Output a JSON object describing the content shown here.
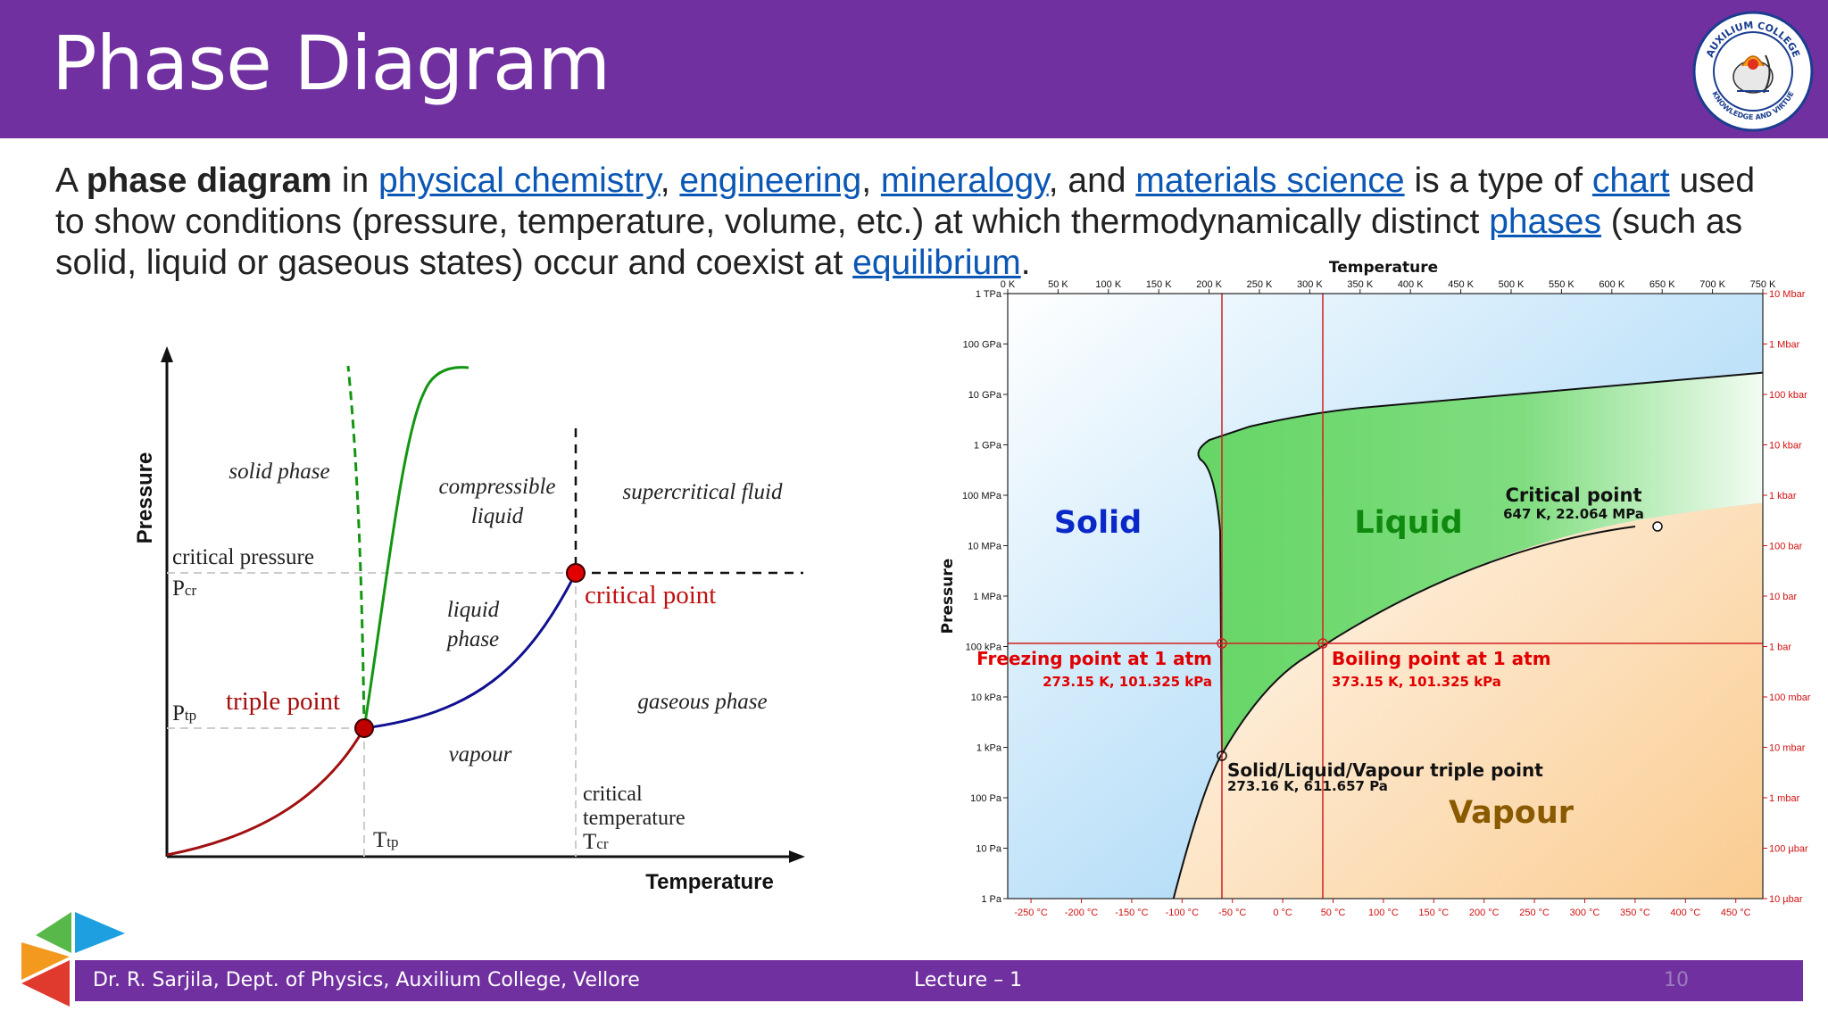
{
  "header": {
    "title": "Phase Diagram",
    "logo": {
      "text_top": "AUXILIUM COLLEGE",
      "text_bottom": "KNOWLEDGE AND VIRTUE",
      "icon": "college-seal"
    }
  },
  "intro": {
    "t1": "A ",
    "bold": "phase diagram",
    "t2": " in ",
    "link1": "physical chemistry",
    "t3": ", ",
    "link2": "engineering",
    "t4": ", ",
    "link3": "mineralogy",
    "t5": ", and ",
    "link4": "materials science",
    "t6": " is a type of ",
    "link5": "chart",
    "t7": " used to show conditions (pressure, temperature, volume, etc.) at which thermodynamically distinct ",
    "link6": "phases",
    "t8": " (such as solid, liquid or gaseous states) occur and coexist at ",
    "link7": "equilibrium",
    "t9": "."
  },
  "left_diagram": {
    "y_axis": "Pressure",
    "x_axis": "Temperature",
    "regions": {
      "solid": "solid phase",
      "compressible_1": "compressible",
      "compressible_2": "liquid",
      "supercritical": "supercritical fluid",
      "liquid_1": "liquid",
      "liquid_2": "phase",
      "gaseous": "gaseous phase",
      "vapour": "vapour"
    },
    "labels": {
      "critical_pressure": "critical pressure",
      "p_cr": "P",
      "p_cr_sub": "cr",
      "p_tp": "P",
      "p_tp_sub": "tp",
      "t_tp": "T",
      "t_tp_sub": "tp",
      "triple_point": "triple point",
      "critical_point": "critical point",
      "critical_temp_1": "critical",
      "critical_temp_2": "temperature",
      "t_cr": "T",
      "t_cr_sub": "cr"
    },
    "colors": {
      "sublimation": "#a01010",
      "vapor": "#101090",
      "melting": "#129612",
      "point": "#c00000"
    }
  },
  "chart_data": {
    "type": "phase-diagram",
    "title": "Temperature",
    "ylabel": "Pressure",
    "x_top_ticks": [
      "0 K",
      "50 K",
      "100 K",
      "150 K",
      "200 K",
      "250 K",
      "300 K",
      "350 K",
      "400 K",
      "450 K",
      "500 K",
      "550 K",
      "600 K",
      "650 K",
      "700 K",
      "750 K"
    ],
    "x_bottom_ticks": [
      "-250 °C",
      "-200 °C",
      "-150 °C",
      "-100 °C",
      "-50 °C",
      "0 °C",
      "50 °C",
      "100 °C",
      "150 °C",
      "200 °C",
      "250 °C",
      "300 °C",
      "350 °C",
      "400 °C",
      "450 °C"
    ],
    "y_left_ticks": [
      "1 TPa",
      "100 GPa",
      "10 GPa",
      "1 GPa",
      "100 MPa",
      "10 MPa",
      "1 MPa",
      "100 kPa",
      "10 kPa",
      "1 kPa",
      "100 Pa",
      "10 Pa",
      "1 Pa"
    ],
    "y_right_ticks": [
      "10 Mbar",
      "1 Mbar",
      "100 kbar",
      "10 kbar",
      "1 kbar",
      "100 bar",
      "10 bar",
      "1 bar",
      "100 mbar",
      "10 mbar",
      "1 mbar",
      "100 µbar",
      "10 µbar"
    ],
    "x_range_K": [
      0,
      750
    ],
    "y_range_Pa_log10": [
      0,
      12
    ],
    "regions": {
      "solid": "Solid",
      "liquid": "Liquid",
      "vapour": "Vapour"
    },
    "annotations": {
      "critical_title": "Critical point",
      "critical_value": "647 K, 22.064 MPa",
      "freezing_title": "Freezing point at 1 atm",
      "freezing_value": "273.15 K, 101.325 kPa",
      "boiling_title": "Boiling point at 1 atm",
      "boiling_value": "373.15 K, 101.325 kPa",
      "triple_title": "Solid/Liquid/Vapour triple point",
      "triple_value": "273.16 K, 611.657 Pa"
    },
    "points": [
      {
        "T": 647,
        "P": 22064000
      },
      {
        "T": 273.15,
        "P": 101325
      },
      {
        "T": 373.15,
        "P": 101325
      },
      {
        "T": 273.16,
        "P": 611.657
      }
    ],
    "colors": {
      "solid_label": "#0a28c8",
      "liquid_label": "#0f8a0f",
      "vapour_label": "#8a5a00",
      "axis_right": "#d01010",
      "reference_lines": "#d02020"
    }
  },
  "footer": {
    "author": "Dr. R. Sarjila, Dept. of Physics, Auxilium College, Vellore",
    "lecture": "Lecture – 1",
    "page": "10"
  }
}
